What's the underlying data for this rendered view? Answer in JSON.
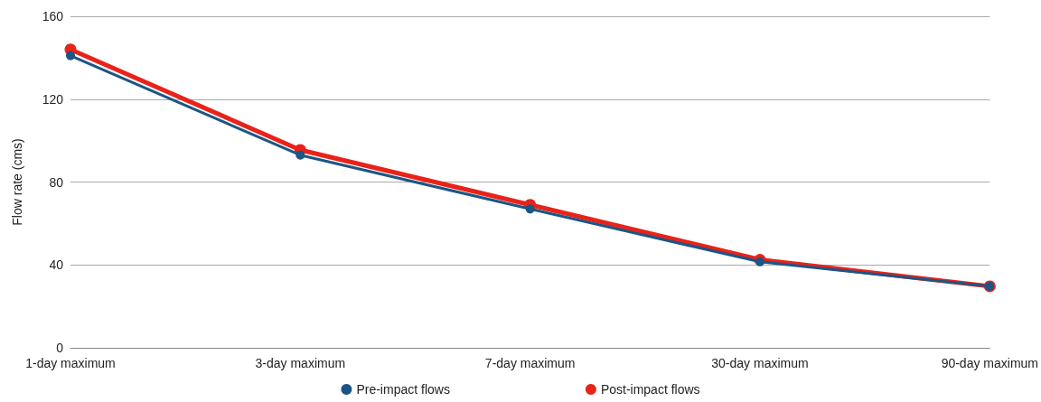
{
  "chart_data": {
    "type": "line",
    "ylabel": "Flow rate (cms)",
    "categories": [
      "1-day maximum",
      "3-day maximum",
      "7-day maximum",
      "30-day maximum",
      "90-day maximum"
    ],
    "series": [
      {
        "name": "Pre-impact flows",
        "color": "#1b5687",
        "values": [
          141,
          93,
          67,
          41.5,
          29.7
        ]
      },
      {
        "name": "Post-impact flows",
        "color": "#e8231a",
        "values": [
          144,
          95.5,
          69,
          42.5,
          29.7
        ]
      }
    ],
    "ylim": [
      0,
      160
    ],
    "yticks": [
      0,
      40,
      80,
      120,
      160
    ],
    "grid": "y",
    "legend": "bottom",
    "marker": "circle",
    "line_style": "solid"
  }
}
